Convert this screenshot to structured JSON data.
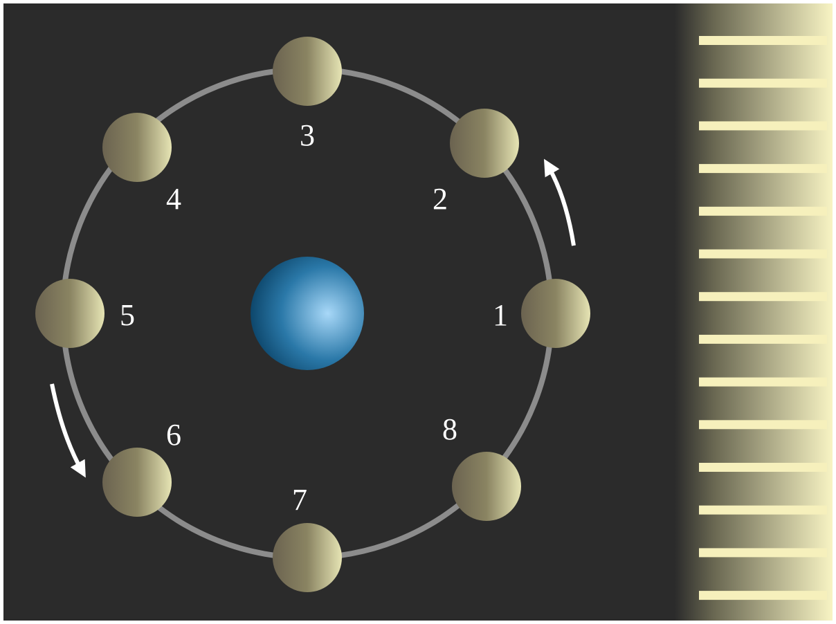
{
  "phase_labels": [
    "1",
    "2",
    "3",
    "4",
    "5",
    "6",
    "7",
    "8"
  ]
}
